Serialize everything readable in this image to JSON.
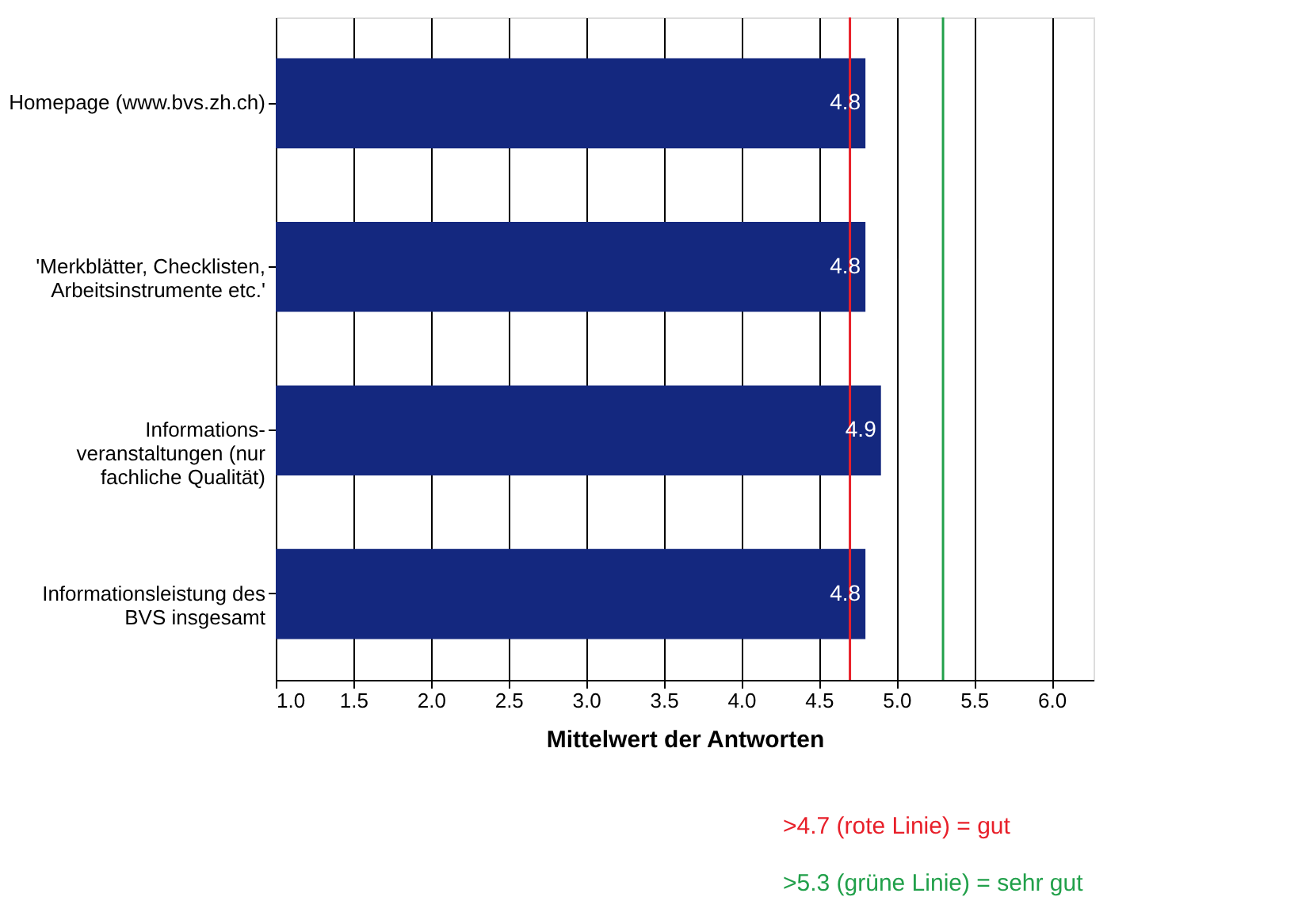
{
  "chart_data": {
    "type": "bar",
    "orientation": "horizontal",
    "xlabel": "Mittelwert der Antworten",
    "categories": [
      "Homepage (www.bvs.zh.ch)",
      "'Merkblätter, Checklisten,\nArbeitsinstrumente etc.'",
      "Informations-\nveranstaltungen (nur\nfachliche Qualität)",
      "Informationsleistung des\nBVS insgesamt"
    ],
    "values": [
      4.8,
      4.8,
      4.9,
      4.8
    ],
    "color": "#14287f",
    "data_labels": true,
    "xlim": [
      1.0,
      6.27
    ],
    "xticks": [
      {
        "value": 1,
        "label": "1.0"
      },
      {
        "value": 1.5,
        "label": "1.5"
      },
      {
        "value": 2,
        "label": "2.0"
      },
      {
        "value": 2.5,
        "label": "2.5"
      },
      {
        "value": 3,
        "label": "3.0"
      },
      {
        "value": 3.5,
        "label": "3.5"
      },
      {
        "value": 4,
        "label": "4.0"
      },
      {
        "value": 4.5,
        "label": "4.5"
      },
      {
        "value": 5,
        "label": "5.0"
      },
      {
        "value": 5.5,
        "label": "5.5"
      },
      {
        "value": 6,
        "label": "6.0"
      }
    ],
    "grid": "x",
    "ref_lines": [
      {
        "axis": "x",
        "value": 4.7,
        "label": ">4.7 (rote Linie) = gut",
        "color": "#e8202a"
      },
      {
        "axis": "x",
        "value": 5.3,
        "label": ">5.3 (grüne Linie) = sehr gut",
        "color": "#21a04a"
      }
    ]
  }
}
